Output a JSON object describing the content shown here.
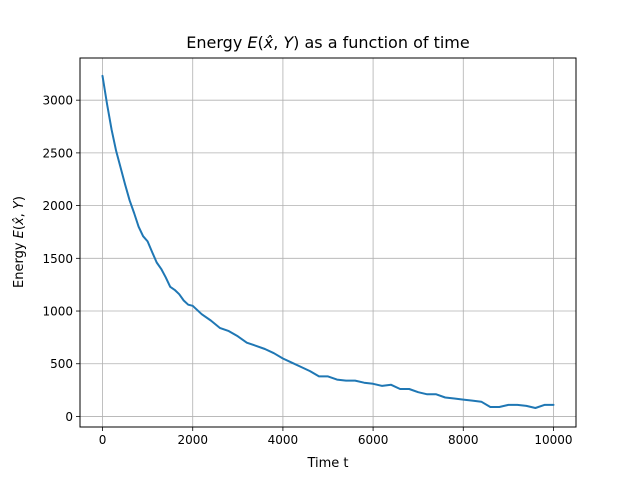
{
  "chart_data": {
    "type": "line",
    "title": "Energy E(x̂, Y) as a function of time",
    "xlabel": "Time t",
    "ylabel": "Energy E(x̂, Y)",
    "xlim": [
      -500,
      10500
    ],
    "ylim": [
      -100,
      3400
    ],
    "xticks": [
      0,
      2000,
      4000,
      6000,
      8000,
      10000
    ],
    "xtick_labels": [
      "0",
      "2000",
      "4000",
      "6000",
      "8000",
      "10000"
    ],
    "yticks": [
      0,
      500,
      1000,
      1500,
      2000,
      2500,
      3000
    ],
    "ytick_labels": [
      "0",
      "500",
      "1000",
      "1500",
      "2000",
      "2500",
      "3000"
    ],
    "grid": true,
    "line_color": "#1f77b4",
    "series": [
      {
        "x": [
          0,
          100,
          200,
          300,
          400,
          500,
          600,
          700,
          800,
          900,
          1000,
          1100,
          1200,
          1300,
          1400,
          1500,
          1600,
          1700,
          1800,
          1900,
          2000,
          2200,
          2400,
          2600,
          2800,
          3000,
          3200,
          3400,
          3600,
          3800,
          4000,
          4200,
          4400,
          4600,
          4800,
          5000,
          5200,
          5400,
          5600,
          5800,
          6000,
          6200,
          6400,
          6600,
          6800,
          7000,
          7200,
          7400,
          7600,
          7800,
          8000,
          8200,
          8400,
          8600,
          8800,
          9000,
          9200,
          9400,
          9600,
          9800,
          10000
        ],
        "y": [
          3230,
          2960,
          2720,
          2520,
          2360,
          2200,
          2050,
          1930,
          1800,
          1710,
          1660,
          1560,
          1460,
          1400,
          1320,
          1230,
          1200,
          1160,
          1100,
          1060,
          1050,
          970,
          910,
          840,
          810,
          760,
          700,
          670,
          640,
          600,
          550,
          510,
          470,
          430,
          380,
          380,
          350,
          340,
          340,
          320,
          310,
          290,
          300,
          260,
          260,
          230,
          210,
          210,
          180,
          170,
          160,
          150,
          140,
          90,
          90,
          110,
          110,
          100,
          80,
          110,
          110
        ]
      }
    ]
  }
}
